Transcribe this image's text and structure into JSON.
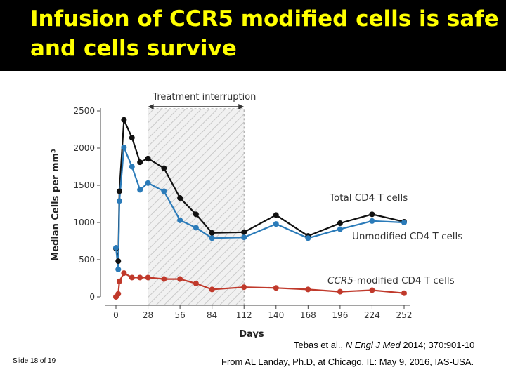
{
  "slide": {
    "title_line1": "Infusion of CCR5 modified cells is safe",
    "title_line2": "and cells survive",
    "citation_authors": "Tebas et al., ",
    "citation_journal": "N Engl J Med",
    "citation_rest": " 2014; 370:901-10",
    "slide_number": "Slide 18 of 19",
    "source": "From AL Landay, Ph.D, at Chicago, IL: May 9, 2016, IAS-USA.",
    "title_color": "#ffff00",
    "header_bg": "#000000"
  },
  "chart_data": {
    "type": "line",
    "xlabel": "Days",
    "ylabel": "Median Cells per mm³",
    "xticks": [
      0,
      28,
      56,
      84,
      112,
      140,
      168,
      196,
      224,
      252
    ],
    "yticks": [
      0,
      500,
      1000,
      1500,
      2000,
      2500
    ],
    "ytick_labels": [
      "0",
      "500",
      "1000",
      "1500",
      "2000",
      "2500"
    ],
    "xlim": [
      0,
      252
    ],
    "ylim": [
      0,
      2500
    ],
    "shaded_region": {
      "label": "Treatment interruption",
      "x_start": 28,
      "x_end": 112
    },
    "series": [
      {
        "name": "Total CD4 T cells",
        "color": "#111111",
        "x": [
          0,
          2,
          3,
          7,
          14,
          21,
          28,
          42,
          56,
          70,
          84,
          112,
          140,
          168,
          196,
          224,
          252
        ],
        "y": [
          650,
          480,
          1420,
          2380,
          2140,
          1810,
          1860,
          1730,
          1330,
          1110,
          860,
          870,
          1100,
          820,
          990,
          1110,
          1010
        ]
      },
      {
        "name": "Unmodified CD4 T cells",
        "color": "#2b7bb9",
        "x": [
          0,
          2,
          3,
          7,
          14,
          21,
          28,
          42,
          56,
          70,
          84,
          112,
          140,
          168,
          196,
          224,
          252
        ],
        "y": [
          660,
          370,
          1290,
          2010,
          1750,
          1440,
          1530,
          1420,
          1030,
          930,
          790,
          800,
          980,
          790,
          910,
          1020,
          1000
        ]
      },
      {
        "name": "CCR5-modified CD4 T cells",
        "name_italic": "CCR5",
        "name_rest": "-modified CD4 T cells",
        "color": "#c0392b",
        "x": [
          0,
          2,
          3,
          7,
          14,
          21,
          28,
          42,
          56,
          70,
          84,
          112,
          140,
          168,
          196,
          224,
          252
        ],
        "y": [
          0,
          40,
          210,
          320,
          260,
          260,
          260,
          240,
          240,
          180,
          100,
          130,
          120,
          100,
          70,
          90,
          50
        ]
      }
    ]
  }
}
